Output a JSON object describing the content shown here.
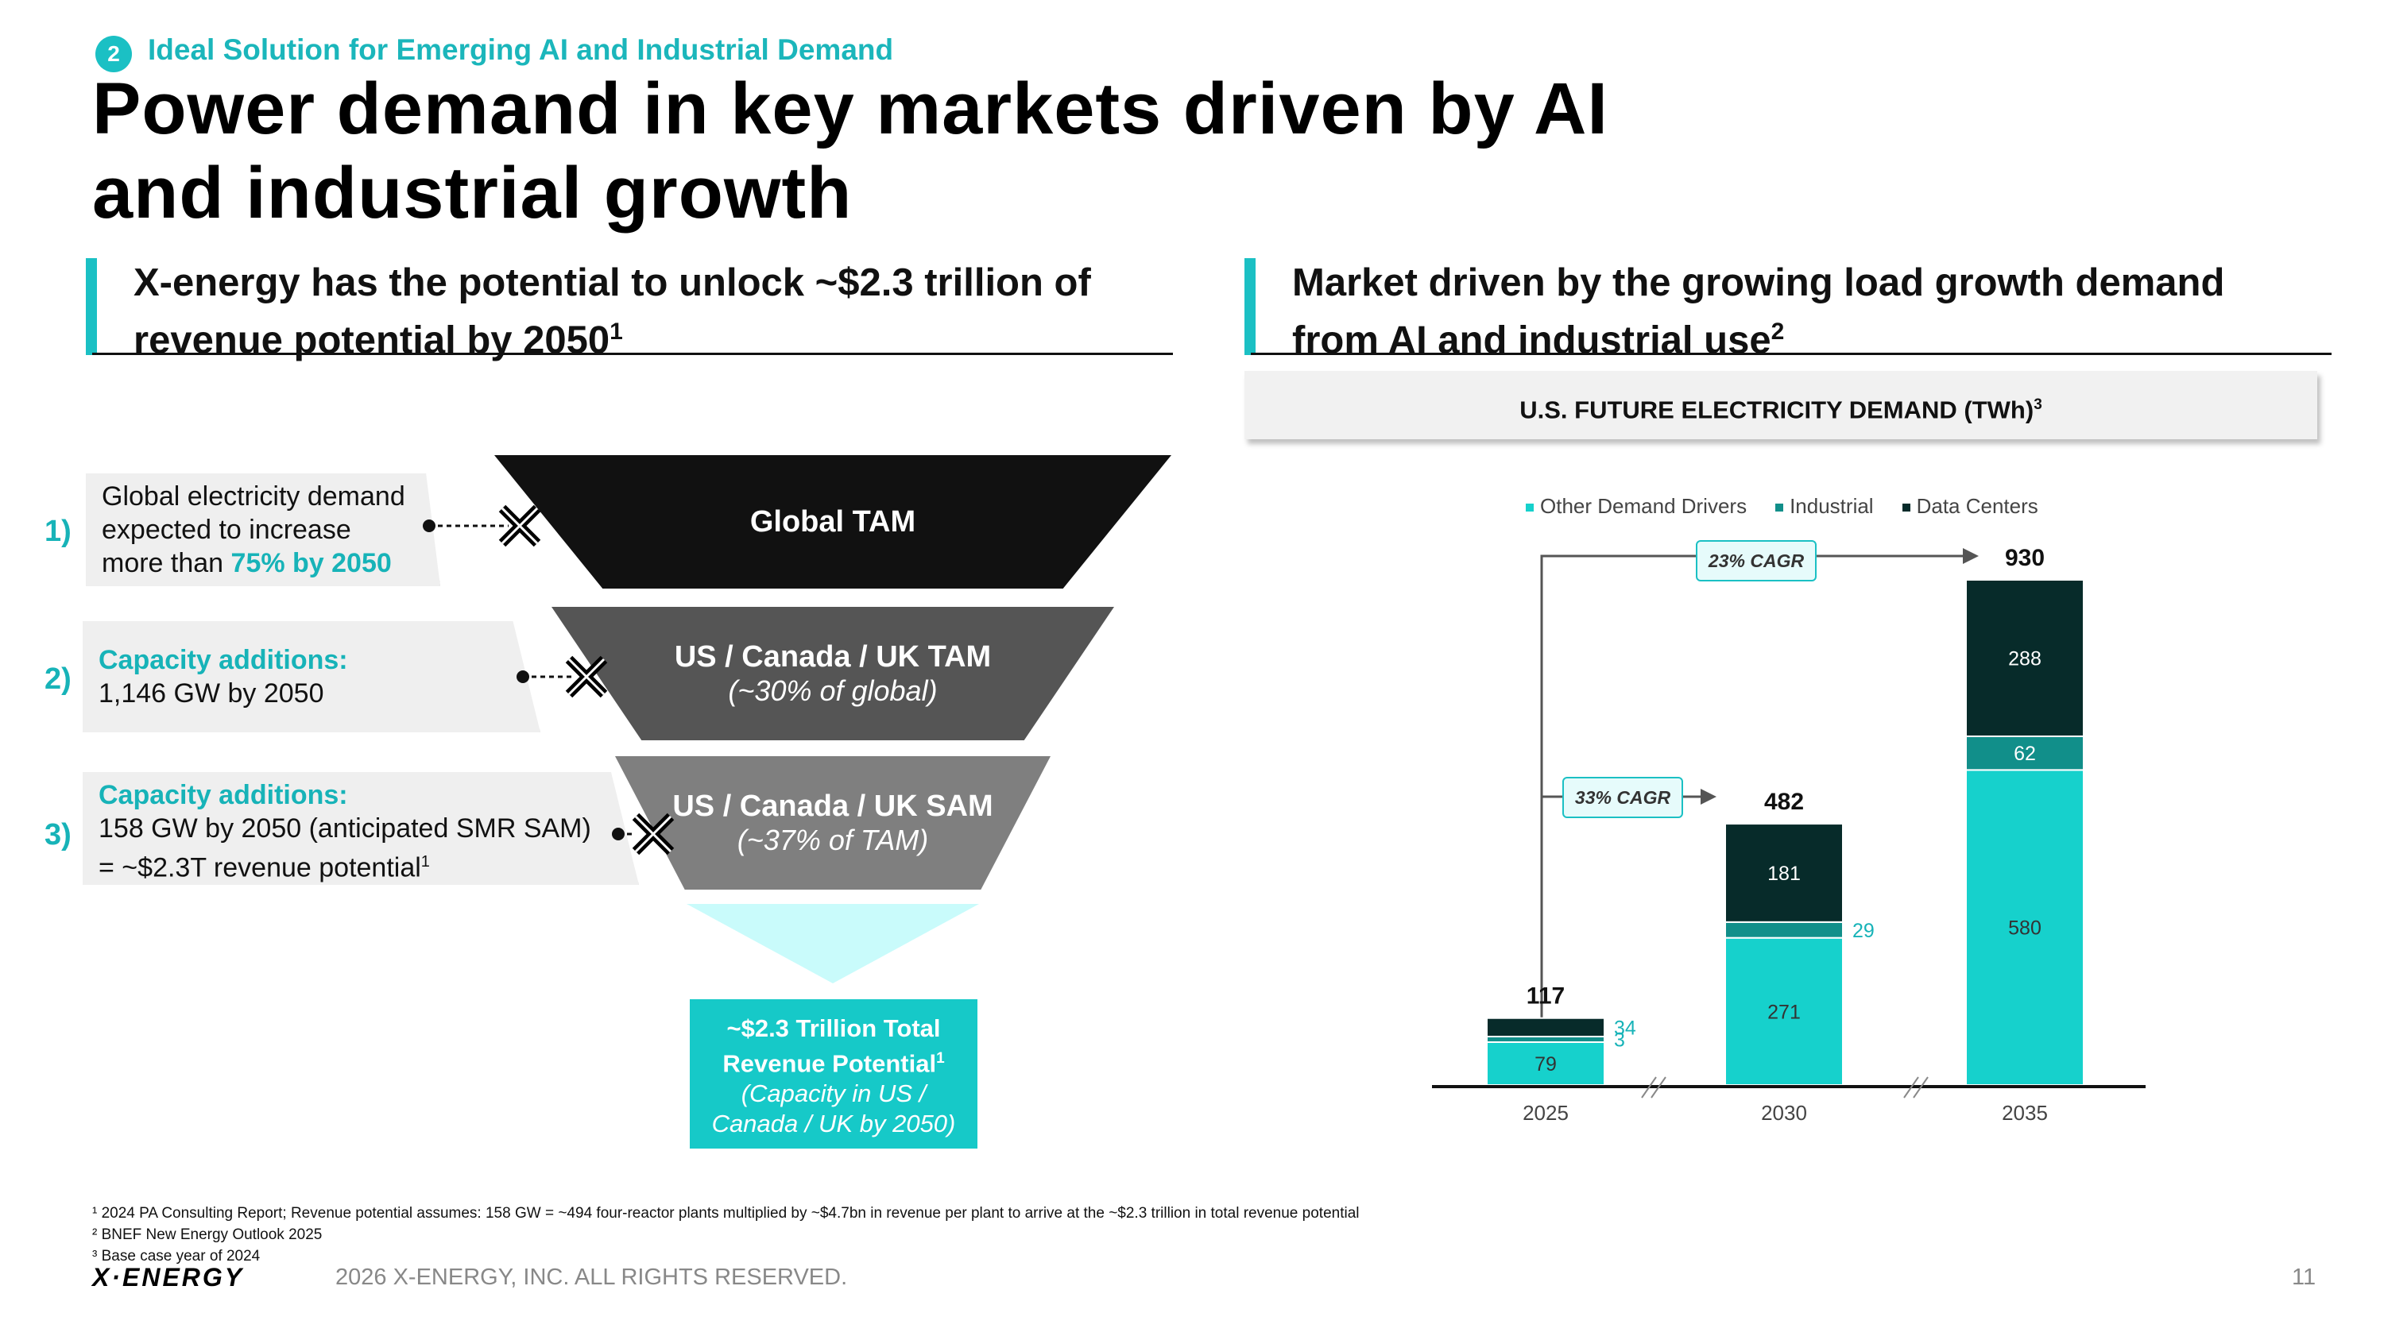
{
  "header": {
    "section_number": "2",
    "section_title": "Ideal Solution for Emerging AI and Industrial Demand",
    "title_line1": "Power demand in key markets driven by AI",
    "title_line2": "and industrial growth"
  },
  "left": {
    "heading_line1": "X-energy has the potential to unlock ~$2.3 trillion of",
    "heading_line2": "revenue potential by 2050",
    "heading_sup": "1",
    "funnel": [
      {
        "label": "Global TAM",
        "sub": ""
      },
      {
        "label": "US / Canada / UK TAM",
        "sub": "(~30% of global)"
      },
      {
        "label": "US / Canada / UK SAM",
        "sub": "(~37% of TAM)"
      }
    ],
    "callouts": [
      {
        "number": "1)",
        "line1": "Global electricity demand",
        "line2": "expected to increase",
        "line3_pre": "more than ",
        "line3_hl": "75% by 2050"
      },
      {
        "number": "2)",
        "heading": "Capacity additions:",
        "line1": "1,146 GW by 2050"
      },
      {
        "number": "3)",
        "heading": "Capacity additions:",
        "line1": "158 GW by 2050 (anticipated SMR SAM)",
        "line2": "= ~$2.3T revenue potential",
        "line2_sup": "1"
      }
    ],
    "result": {
      "line1": "~$2.3 Trillion Total",
      "line2": "Revenue Potential",
      "line2_sup": "1",
      "line3": "(Capacity in US /",
      "line4": "Canada / UK by 2050)"
    }
  },
  "right": {
    "heading_line1": "Market driven by the growing load growth demand",
    "heading_line2": "from AI and industrial use",
    "heading_sup": "2"
  },
  "chart_data": {
    "type": "bar",
    "title": "U.S. FUTURE ELECTRICITY DEMAND (TWh)",
    "title_sup": "3",
    "stacked": true,
    "categories": [
      "2025",
      "2030",
      "2035"
    ],
    "series": [
      {
        "name": "Other Demand Drivers",
        "values": [
          79,
          271,
          580
        ],
        "color": "#16d1cc"
      },
      {
        "name": "Industrial",
        "values": [
          3,
          29,
          62
        ],
        "color": "#118f8a"
      },
      {
        "name": "Data Centers",
        "values": [
          34,
          181,
          288
        ],
        "color": "#072b2a"
      }
    ],
    "totals": [
      "117",
      "482",
      "930"
    ],
    "legend_position": "top",
    "annotations": [
      "23% CAGR",
      "33% CAGR"
    ],
    "ylim": [
      0,
      930
    ],
    "grid": false
  },
  "footer": {
    "note1": "¹ 2024 PA Consulting Report; Revenue potential assumes: 158 GW = ~494 four-reactor plants multiplied by ~$4.7bn in revenue per plant to arrive at the ~$2.3 trillion in total revenue potential",
    "note2": "² BNEF New Energy Outlook 2025",
    "note3": "³ Base case year of 2024",
    "logo": "X·ENERGY",
    "copyright": "2026 X-ENERGY, INC. ALL RIGHTS RESERVED.",
    "page_number": "11"
  }
}
